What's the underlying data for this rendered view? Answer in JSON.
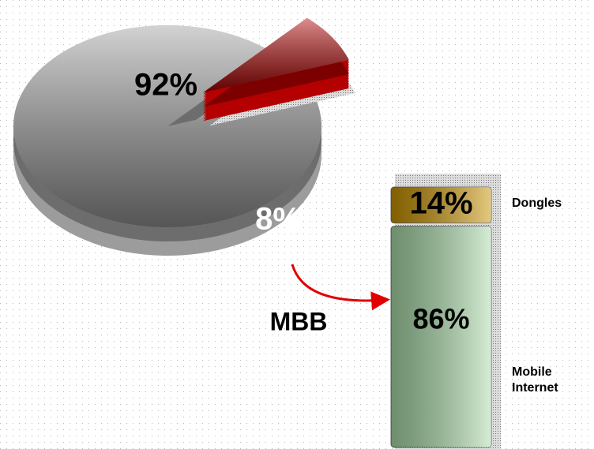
{
  "chart_data": [
    {
      "type": "pie",
      "categories": [
        null,
        "MBB"
      ],
      "values": [
        92,
        8
      ],
      "value_labels": [
        "92%",
        "8%"
      ],
      "colors": [
        "#9c9c9c",
        "#b40000"
      ]
    },
    {
      "type": "stacked_bar",
      "categories": [
        "Mobile Internet",
        "Dongles"
      ],
      "values": [
        86,
        14
      ],
      "value_labels": [
        "86%",
        "14%"
      ],
      "colors": [
        "#a9dba9",
        "#c89200"
      ]
    }
  ]
}
